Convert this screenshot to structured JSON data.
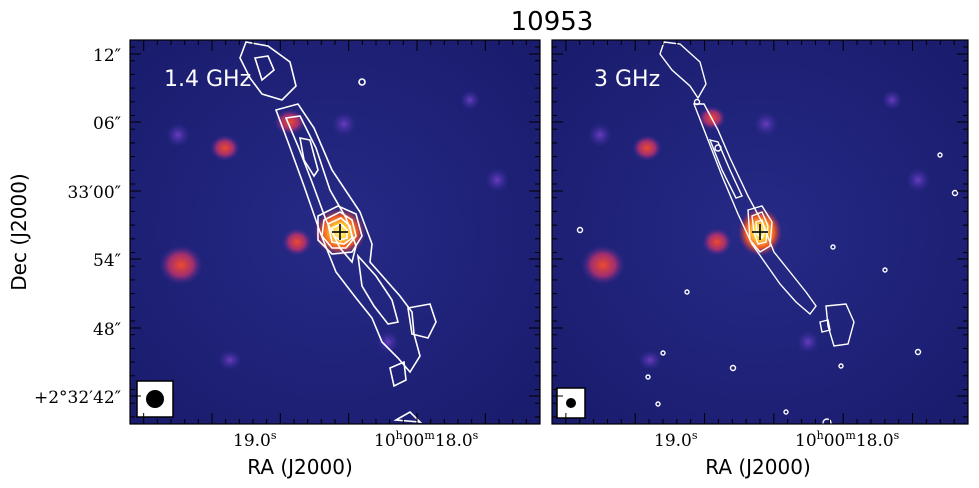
{
  "figure": {
    "title": "10953",
    "ylabel": "Dec (J2000)",
    "xlabel": "RA (J2000)",
    "dec_ticks": [
      "12″",
      "06″",
      "33′00″",
      "54″",
      "48″",
      "+2°32′42″"
    ],
    "ra_ticks_left": {
      "minor": "19.0",
      "minor_unit": "s",
      "major_h": "10",
      "major_m": "00",
      "major_s": "18.0"
    },
    "ra_ticks_right": {
      "minor": "19.0",
      "minor_unit": "s",
      "major_h": "10",
      "major_m": "00",
      "major_s": "18.0"
    }
  },
  "panels": [
    {
      "label": "1.4 GHz",
      "beam": "large"
    },
    {
      "label": "3 GHz",
      "beam": "small"
    }
  ],
  "colors": {
    "background": "#1d1f78",
    "blob": "#d8442e",
    "core": "#ffe04a",
    "contour": "#ffffff"
  }
}
